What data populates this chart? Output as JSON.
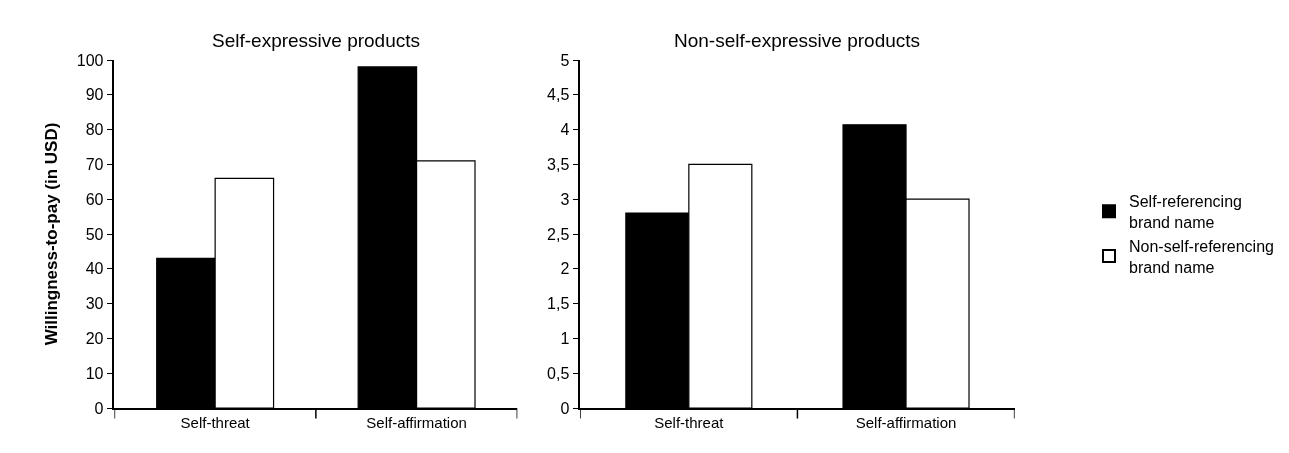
{
  "chart_data": [
    {
      "type": "bar",
      "title": "Self-expressive products",
      "ylabel": "Willingness-to-pay (in USD)",
      "categories": [
        "Self-threat",
        "Self-affirmation"
      ],
      "series": [
        {
          "color": "#000000",
          "values": [
            43,
            98
          ]
        },
        {
          "color": "#ffffff",
          "values": [
            66,
            71
          ]
        }
      ],
      "ylim": [
        0,
        100
      ],
      "yticks": [
        0,
        10,
        20,
        30,
        40,
        50,
        60,
        70,
        80,
        90,
        100
      ]
    },
    {
      "type": "bar",
      "title": "Non-self-expressive products",
      "categories": [
        "Self-threat",
        "Self-affirmation"
      ],
      "series": [
        {
          "name": "Self-referencing brand name",
          "color": "#000000",
          "values": [
            2.8,
            4.07
          ]
        },
        {
          "name": "Non-self-referencing brand name",
          "color": "#ffffff",
          "values": [
            3.5,
            3.0
          ]
        }
      ],
      "ylim": [
        0,
        5
      ],
      "yticks": [
        0,
        {
          "value": 0.5,
          "label": "0,5"
        },
        1,
        {
          "value": 1.5,
          "label": "1,5"
        },
        2,
        {
          "value": 2.5,
          "label": "2,5"
        },
        3,
        {
          "value": 3.5,
          "label": "3,5"
        },
        4,
        {
          "value": 4.5,
          "label": "4,5"
        },
        5
      ],
      "legend": "right"
    }
  ]
}
